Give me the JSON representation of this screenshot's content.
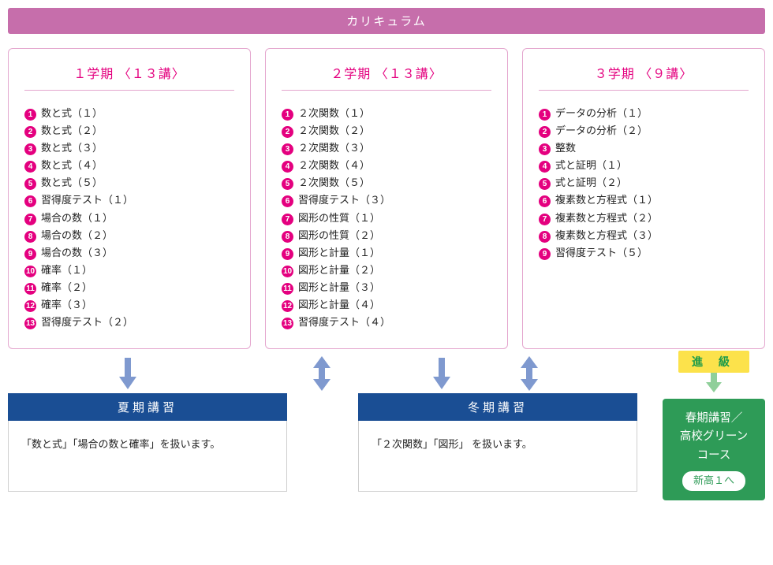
{
  "header": {
    "title": "カリキュラム"
  },
  "colors": {
    "header_bg": "#c66eab",
    "card_border": "#e4a6ce",
    "accent_pink": "#e4007f",
    "seminar_header_bg": "#1a4e94",
    "arrow_blue": "#7f99cf",
    "promo_bg": "#fce24b",
    "promo_text": "#1a9a4a",
    "spring_bg": "#2e9b57"
  },
  "terms": [
    {
      "title": "１学期 〈１３講〉",
      "items": [
        "数と式（１）",
        "数と式（２）",
        "数と式（３）",
        "数と式（４）",
        "数と式（５）",
        "習得度テスト（１）",
        "場合の数（１）",
        "場合の数（２）",
        "場合の数（３）",
        "確率（１）",
        "確率（２）",
        "確率（３）",
        "習得度テスト（２）"
      ]
    },
    {
      "title": "２学期 〈１３講〉",
      "items": [
        "２次関数（１）",
        "２次関数（２）",
        "２次関数（３）",
        "２次関数（４）",
        "２次関数（５）",
        "習得度テスト（３）",
        "図形の性質（１）",
        "図形の性質（２）",
        "図形と計量（１）",
        "図形と計量（２）",
        "図形と計量（３）",
        "図形と計量（４）",
        "習得度テスト（４）"
      ]
    },
    {
      "title": "３学期 〈９講〉",
      "items": [
        "データの分析（１）",
        "データの分析（２）",
        "整数",
        "式と証明（１）",
        "式と証明（２）",
        "複素数と方程式（１）",
        "複素数と方程式（２）",
        "複素数と方程式（３）",
        "習得度テスト（５）"
      ]
    }
  ],
  "seminars": [
    {
      "title": "夏期講習",
      "body": "「数と式」「場合の数と確率」を扱います。"
    },
    {
      "title": "冬期講習",
      "body": "「２次関数」「図形」 を扱います。"
    }
  ],
  "promotion": {
    "badge": "進 級",
    "spring_lines": [
      "春期講習／",
      "高校グリーン",
      "コース"
    ],
    "pill": "新高１へ"
  }
}
